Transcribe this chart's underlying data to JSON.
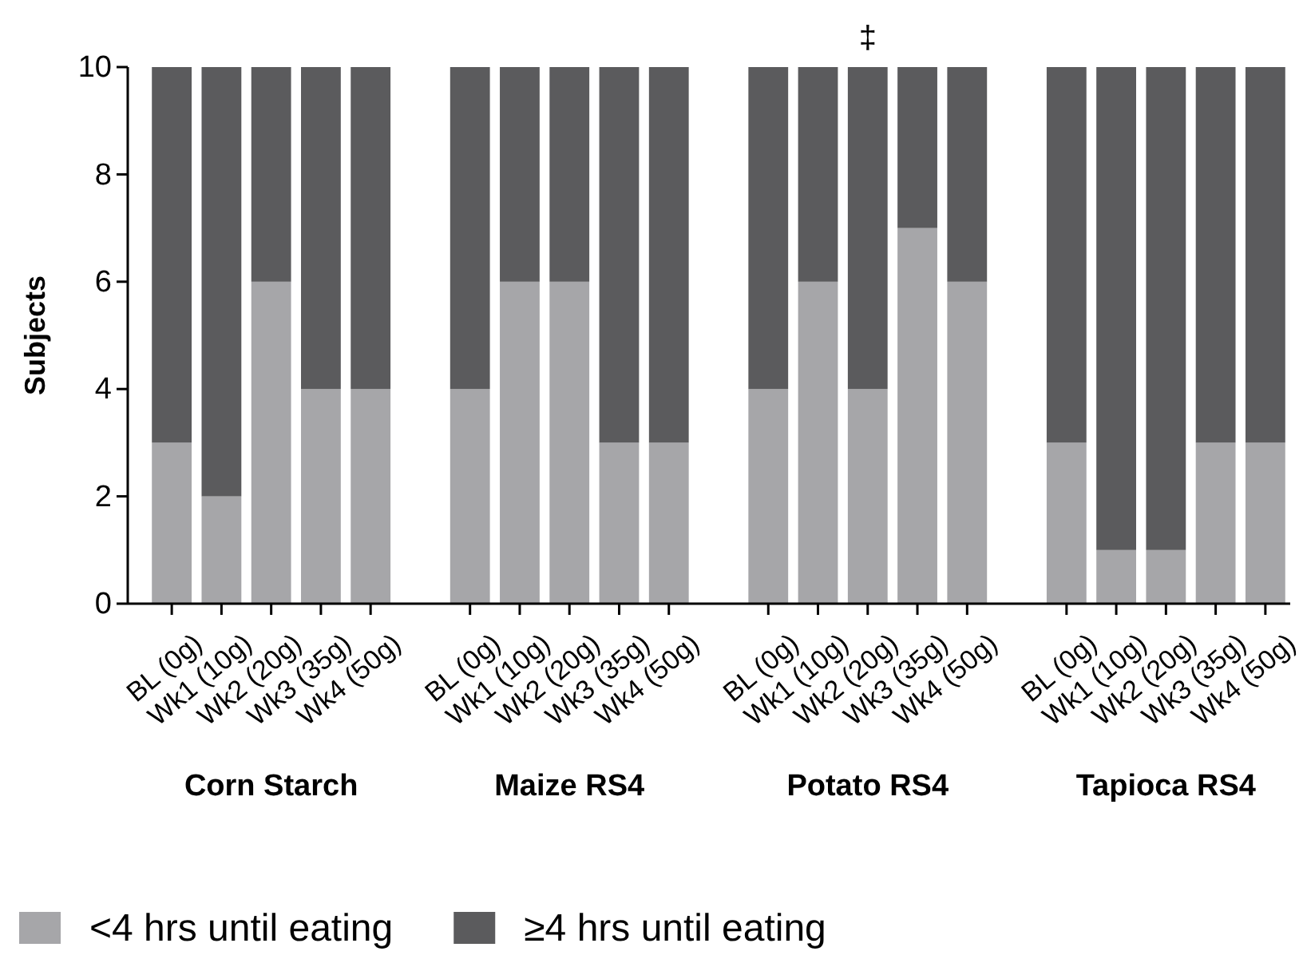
{
  "chart_data": {
    "type": "bar",
    "stacked": true,
    "ylabel": "Subjects",
    "ylim": [
      0,
      10
    ],
    "yticks": [
      0,
      2,
      4,
      6,
      8,
      10
    ],
    "grid": false,
    "legend": "bottom",
    "categories": [
      "BL (0g)",
      "Wk1 (10g)",
      "Wk2 (20g)",
      "Wk3 (35g)",
      "Wk4 (50g)",
      null,
      "BL (0g)",
      "Wk1 (10g)",
      "Wk2 (20g)",
      "Wk3 (35g)",
      "Wk4 (50g)",
      null,
      "BL (0g)",
      "Wk1 (10g)",
      "Wk2 (20g)",
      "Wk3 (35g)",
      "Wk4 (50g)",
      null,
      "BL (0g)",
      "Wk1 (10g)",
      "Wk2 (20g)",
      "Wk3 (35g)",
      "Wk4 (50g)"
    ],
    "series": [
      {
        "name": "<4 hrs until eating",
        "color": "#a6a6a9",
        "values": [
          3,
          2,
          6,
          4,
          4,
          null,
          4,
          6,
          6,
          3,
          3,
          null,
          4,
          6,
          4,
          7,
          6,
          null,
          3,
          1,
          1,
          3,
          3
        ]
      },
      {
        "name": "≥4 hrs until eating",
        "color": "#5b5b5d",
        "values": [
          7,
          8,
          4,
          6,
          6,
          null,
          6,
          4,
          4,
          7,
          7,
          null,
          6,
          4,
          6,
          3,
          4,
          null,
          7,
          9,
          9,
          7,
          7
        ]
      }
    ],
    "annotations": [
      "Corn Starch",
      "Maize RS4",
      "Potato RS4",
      "Tapioca RS4",
      "‡"
    ]
  }
}
